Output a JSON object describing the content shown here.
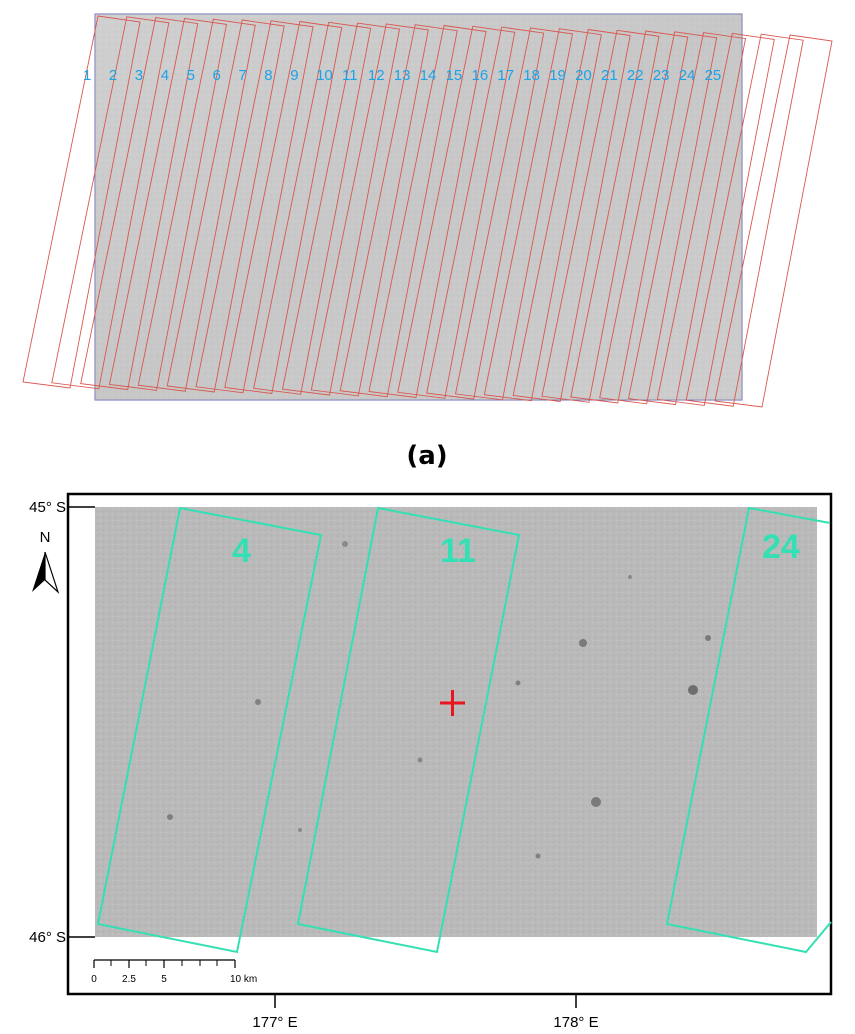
{
  "panel_a": {
    "caption": "(a)",
    "strip_labels": [
      "1",
      "2",
      "3",
      "4",
      "5",
      "6",
      "7",
      "8",
      "9",
      "10",
      "11",
      "12",
      "13",
      "14",
      "15",
      "16",
      "17",
      "18",
      "19",
      "20",
      "21",
      "22",
      "23",
      "24",
      "25"
    ]
  },
  "panel_b": {
    "north_label": "N",
    "lat_labels": [
      "45° S",
      "46° S"
    ],
    "lon_labels": [
      "177° E",
      "178° E"
    ],
    "strip_labels": [
      "4",
      "11",
      "24"
    ],
    "scale_bar": {
      "ticks": [
        "0",
        "2.5",
        "5",
        "10 km"
      ]
    },
    "colors": {
      "footprint": "#33e0b4",
      "marker": "#e8141e",
      "strip_outline_a": "#d9574f"
    }
  }
}
